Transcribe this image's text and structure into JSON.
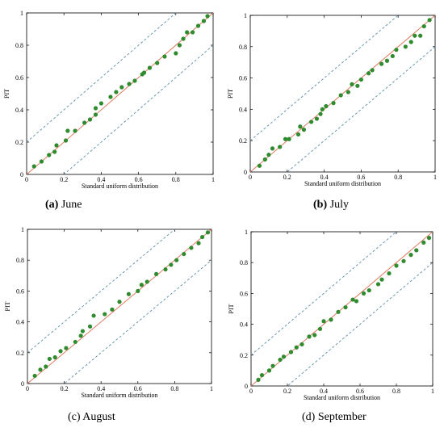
{
  "colors": {
    "ref_line": "#e07a5f",
    "band": "#5b8fa8",
    "points": "#2e8b2e"
  },
  "chart_data": [
    {
      "type": "scatter",
      "label": "(a)",
      "caption": "June",
      "xlabel": "Standard uniform distribution",
      "ylabel": "PIT",
      "xlim": [
        0,
        1
      ],
      "ylim": [
        0,
        1
      ],
      "xticks": [
        "0",
        "0.2",
        "0.4",
        "0.6",
        "0.8",
        "1"
      ],
      "yticks": [
        "0",
        "0.2",
        "0.4",
        "0.6",
        "0.8",
        "1"
      ],
      "reference_line": [
        [
          0,
          0
        ],
        [
          1,
          1
        ]
      ],
      "band_offset": 0.2,
      "x": [
        0.04,
        0.08,
        0.12,
        0.15,
        0.16,
        0.21,
        0.22,
        0.26,
        0.31,
        0.34,
        0.37,
        0.37,
        0.4,
        0.45,
        0.48,
        0.51,
        0.55,
        0.58,
        0.62,
        0.63,
        0.66,
        0.7,
        0.74,
        0.8,
        0.82,
        0.84,
        0.86,
        0.89,
        0.92,
        0.95,
        0.97
      ],
      "y": [
        0.05,
        0.08,
        0.12,
        0.14,
        0.18,
        0.21,
        0.27,
        0.27,
        0.32,
        0.34,
        0.37,
        0.41,
        0.44,
        0.48,
        0.51,
        0.54,
        0.56,
        0.58,
        0.62,
        0.63,
        0.66,
        0.69,
        0.73,
        0.75,
        0.8,
        0.84,
        0.88,
        0.88,
        0.92,
        0.95,
        0.98
      ]
    },
    {
      "type": "scatter",
      "label": "(b)",
      "caption": "July",
      "xlabel": "Standard uniform distribution",
      "ylabel": "PIT",
      "xlim": [
        0,
        1
      ],
      "ylim": [
        0,
        1
      ],
      "xticks": [
        "0",
        "0.2",
        "0.4",
        "0.6",
        "0.8",
        "1"
      ],
      "yticks": [
        "0",
        "0.2",
        "0.4",
        "0.6",
        "0.8",
        "1"
      ],
      "reference_line": [
        [
          0,
          0
        ],
        [
          1,
          1
        ]
      ],
      "band_offset": 0.2,
      "x": [
        0.05,
        0.08,
        0.1,
        0.12,
        0.16,
        0.19,
        0.21,
        0.26,
        0.27,
        0.29,
        0.33,
        0.36,
        0.38,
        0.39,
        0.41,
        0.45,
        0.49,
        0.53,
        0.55,
        0.58,
        0.6,
        0.64,
        0.66,
        0.71,
        0.74,
        0.77,
        0.79,
        0.84,
        0.87,
        0.89,
        0.92,
        0.94,
        0.97
      ],
      "y": [
        0.04,
        0.08,
        0.11,
        0.15,
        0.16,
        0.21,
        0.21,
        0.24,
        0.29,
        0.27,
        0.32,
        0.34,
        0.37,
        0.4,
        0.42,
        0.44,
        0.49,
        0.51,
        0.56,
        0.55,
        0.59,
        0.63,
        0.65,
        0.69,
        0.71,
        0.74,
        0.78,
        0.8,
        0.83,
        0.87,
        0.87,
        0.93,
        0.97
      ]
    },
    {
      "type": "scatter",
      "label": "(c)",
      "caption": "August",
      "xlabel": "Standard uniform distribution",
      "ylabel": "PIT",
      "xlim": [
        0,
        1
      ],
      "ylim": [
        0,
        1
      ],
      "xticks": [
        "0",
        "0.2",
        "0.4",
        "0.6",
        "0.8",
        "1"
      ],
      "yticks": [
        "0",
        "0.2",
        "0.4",
        "0.6",
        "0.8",
        "1"
      ],
      "reference_line": [
        [
          0,
          0
        ],
        [
          1,
          1
        ]
      ],
      "band_offset": 0.2,
      "x": [
        0.04,
        0.07,
        0.1,
        0.12,
        0.15,
        0.18,
        0.21,
        0.26,
        0.29,
        0.3,
        0.34,
        0.36,
        0.42,
        0.46,
        0.5,
        0.55,
        0.6,
        0.62,
        0.65,
        0.7,
        0.75,
        0.78,
        0.81,
        0.85,
        0.89,
        0.93,
        0.95,
        0.98
      ],
      "y": [
        0.05,
        0.09,
        0.11,
        0.16,
        0.17,
        0.21,
        0.23,
        0.27,
        0.31,
        0.34,
        0.37,
        0.44,
        0.45,
        0.48,
        0.53,
        0.58,
        0.6,
        0.64,
        0.66,
        0.71,
        0.74,
        0.77,
        0.8,
        0.84,
        0.88,
        0.91,
        0.95,
        0.98
      ]
    },
    {
      "type": "scatter",
      "label": "(d)",
      "caption": "September",
      "xlabel": "Standard uniform distribution",
      "ylabel": "PIT",
      "xlim": [
        0,
        1
      ],
      "ylim": [
        0,
        1
      ],
      "xticks": [
        "0",
        "0.2",
        "0.4",
        "0.6",
        "0.8",
        "1"
      ],
      "yticks": [
        "0",
        "0.2",
        "0.4",
        "0.6",
        "0.8",
        "1"
      ],
      "reference_line": [
        [
          0,
          0
        ],
        [
          1,
          1
        ]
      ],
      "band_offset": 0.2,
      "x": [
        0.04,
        0.06,
        0.1,
        0.12,
        0.16,
        0.18,
        0.22,
        0.25,
        0.28,
        0.32,
        0.35,
        0.38,
        0.4,
        0.44,
        0.48,
        0.52,
        0.56,
        0.58,
        0.62,
        0.65,
        0.7,
        0.72,
        0.76,
        0.8,
        0.84,
        0.88,
        0.91,
        0.95,
        0.98
      ],
      "y": [
        0.04,
        0.07,
        0.1,
        0.13,
        0.17,
        0.19,
        0.22,
        0.25,
        0.27,
        0.32,
        0.33,
        0.37,
        0.42,
        0.43,
        0.48,
        0.51,
        0.56,
        0.55,
        0.6,
        0.62,
        0.66,
        0.69,
        0.73,
        0.78,
        0.81,
        0.85,
        0.88,
        0.93,
        0.96
      ]
    }
  ]
}
